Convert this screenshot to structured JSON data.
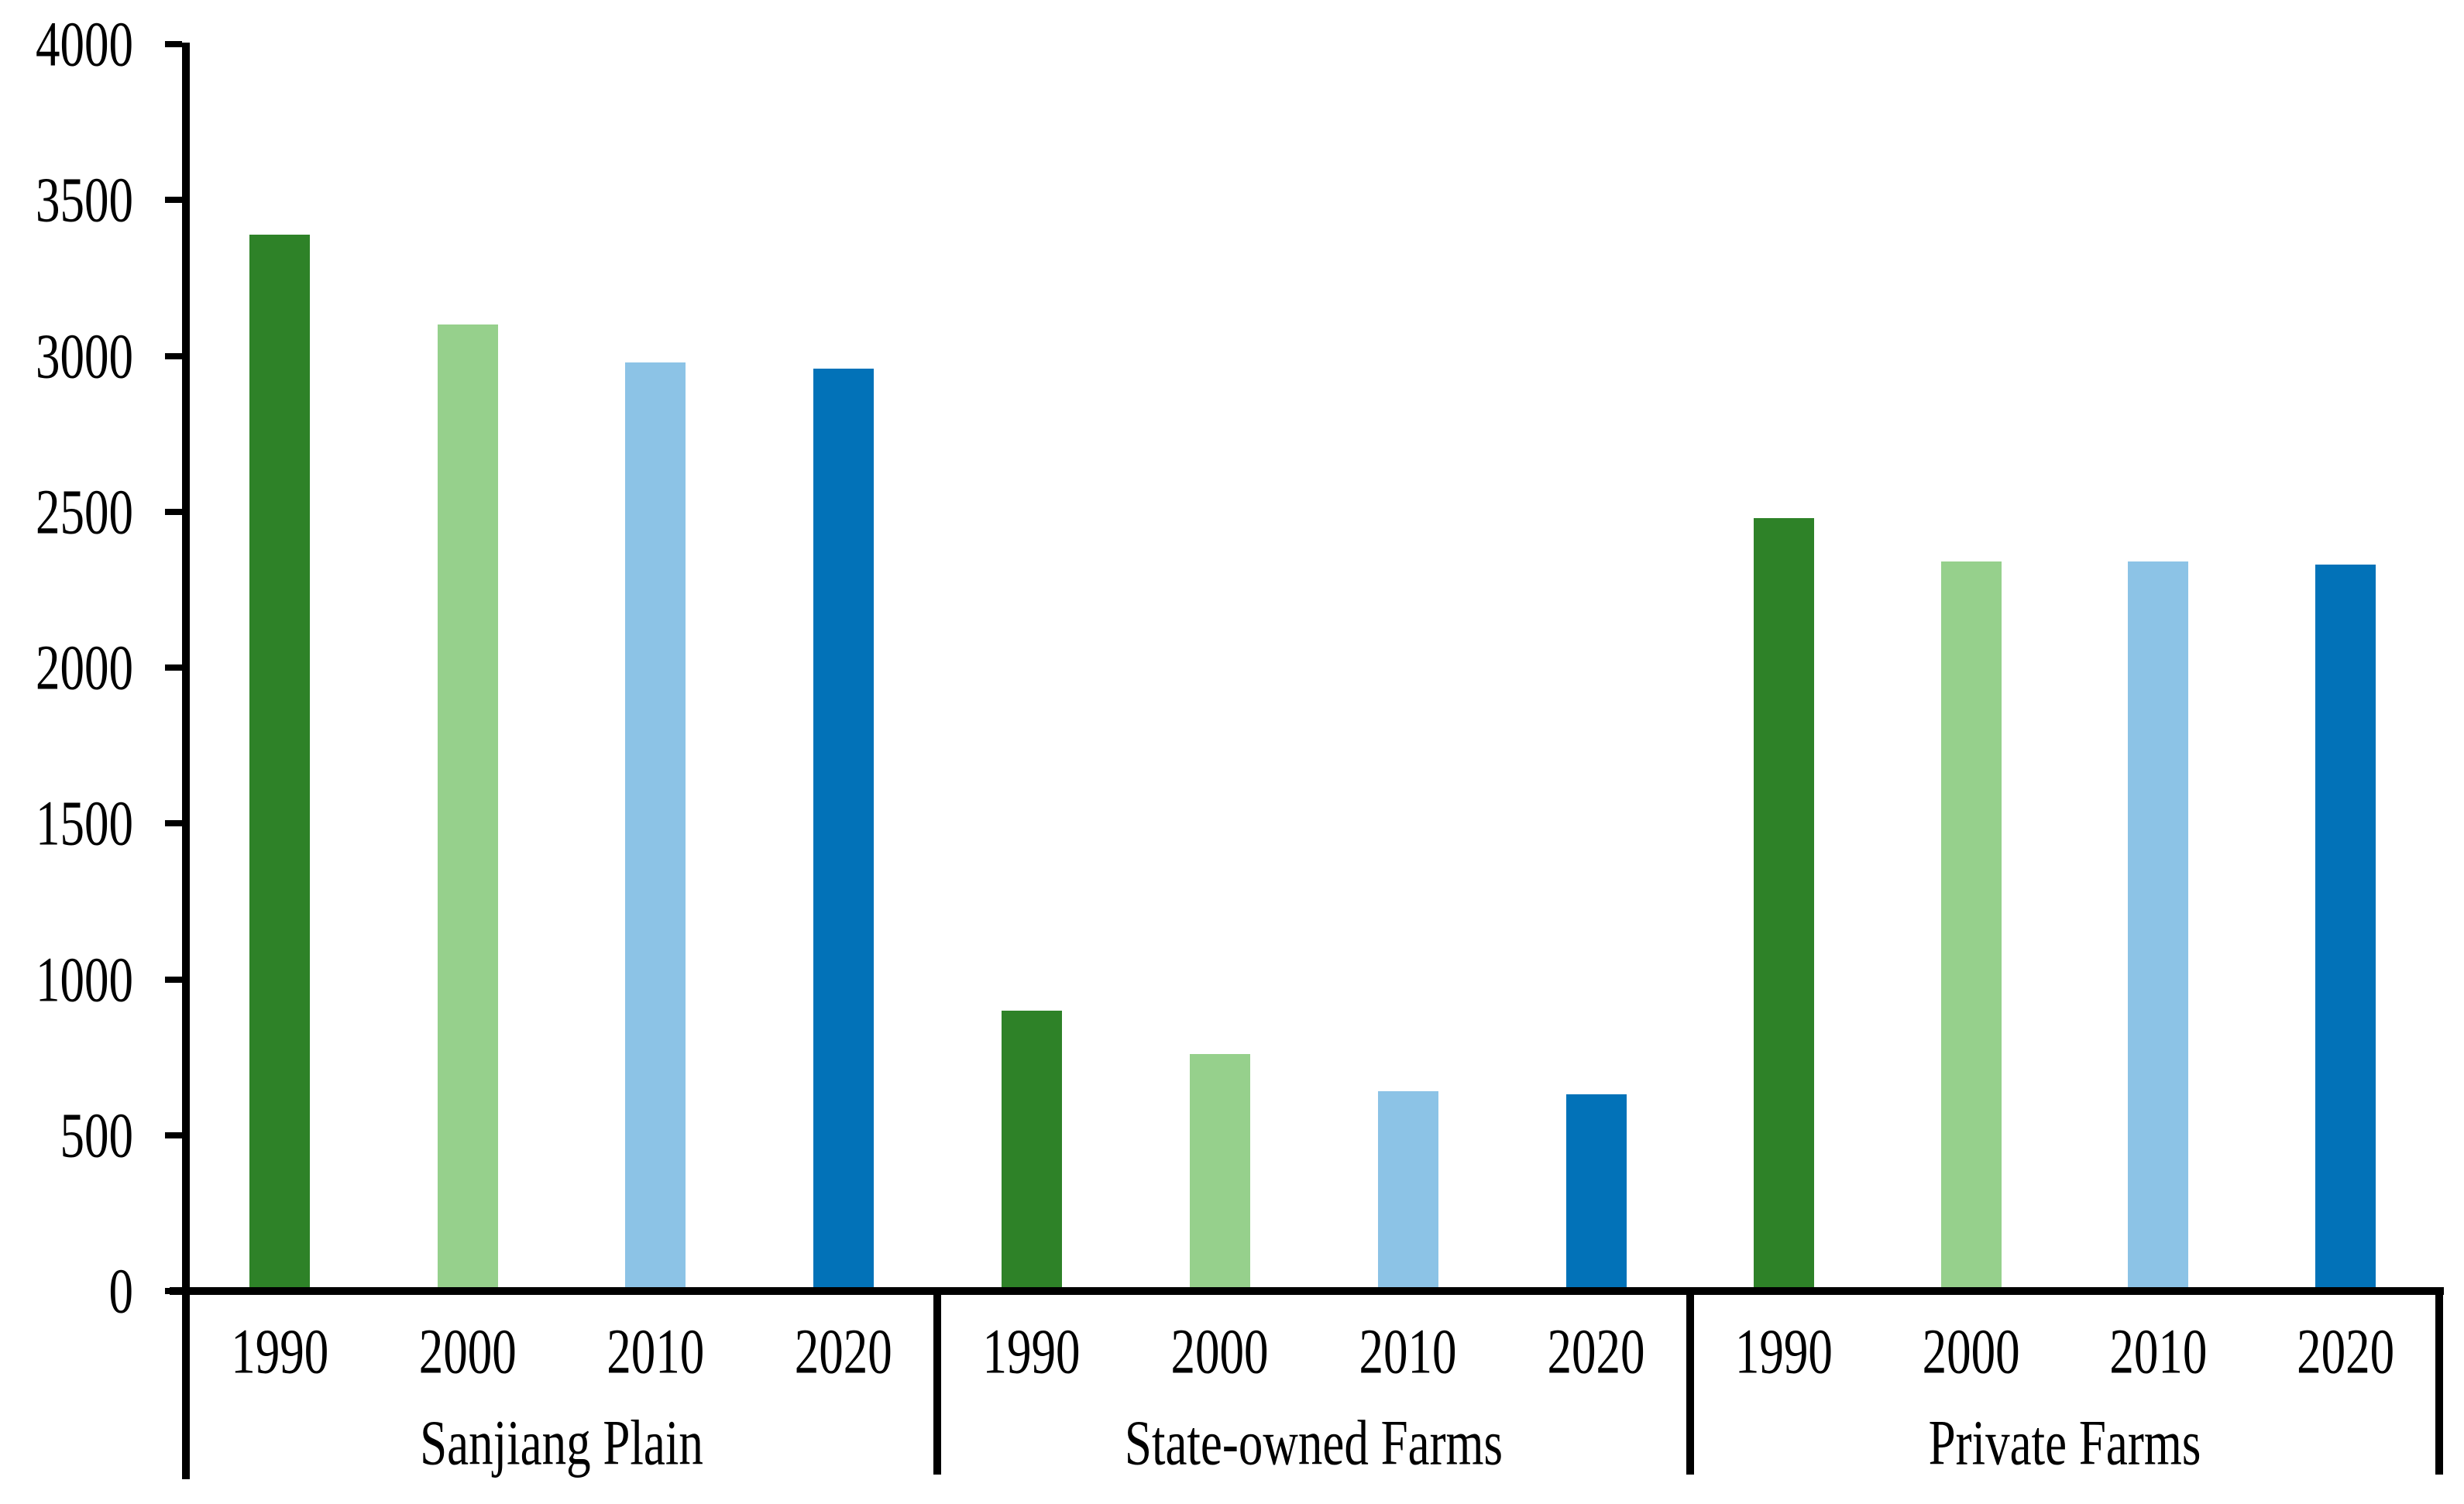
{
  "chart_data": {
    "type": "bar",
    "title": "",
    "xlabel": "",
    "ylabel": "",
    "categories": [
      "Sanjiang Plain",
      "State-owned Farms",
      "Private Farms"
    ],
    "subcategories": [
      "1990",
      "2000",
      "2010",
      "2020"
    ],
    "series": [
      {
        "name": "1990",
        "color": "#2E8228",
        "values": [
          3390,
          900,
          2480
        ]
      },
      {
        "name": "2000",
        "color": "#96D08C",
        "values": [
          3100,
          760,
          2340
        ]
      },
      {
        "name": "2010",
        "color": "#8CC3E6",
        "values": [
          2980,
          640,
          2340
        ]
      },
      {
        "name": "2020",
        "color": "#0272B8",
        "values": [
          2960,
          630,
          2330
        ]
      }
    ],
    "ylim": [
      0,
      4000
    ],
    "yticks": [
      0,
      500,
      1000,
      1500,
      2000,
      2500,
      3000,
      3500,
      4000
    ],
    "grid": false,
    "legend": "none",
    "axis_color": "#000000",
    "background_color": "#FFFFFF"
  }
}
